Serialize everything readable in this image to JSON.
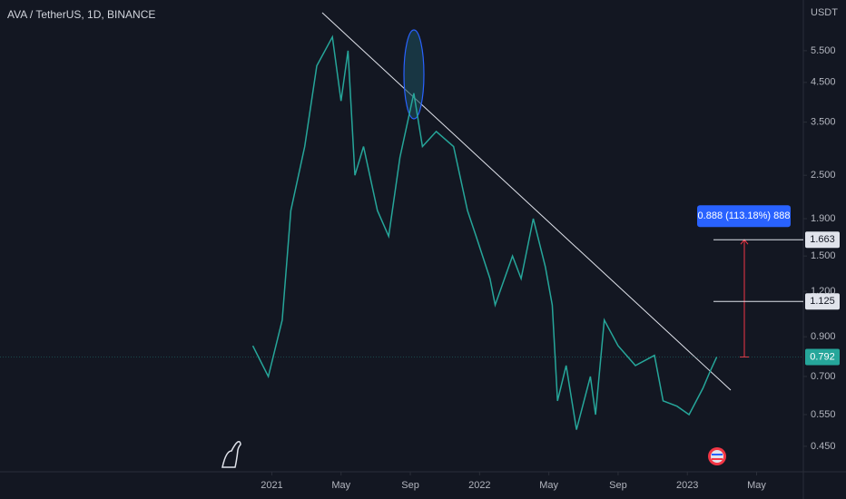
{
  "chart_data": {
    "type": "line",
    "title": "AVA / TetherUS, 1D, BINANCE",
    "y_unit": "USDT",
    "log_scale": true,
    "color": "#26a69a",
    "x": [
      -1.1,
      -0.2,
      0.6,
      1.1,
      1.9,
      2.6,
      3.5,
      4.0,
      4.4,
      4.8,
      5.3,
      6.1,
      6.75,
      7.4,
      8.2,
      8.7,
      9.5,
      10.5,
      11.3,
      11.8,
      12.6,
      12.9,
      13.9,
      14.4,
      15.1,
      15.8,
      16.2,
      16.5,
      17.0,
      17.6,
      18.4,
      18.7,
      19.2,
      20.0,
      21.0,
      22.1,
      22.6,
      23.4,
      24.1,
      24.9,
      25.3,
      25.7
    ],
    "values": [
      0.85,
      0.7,
      1.0,
      2.0,
      3.0,
      5.0,
      6.0,
      4.0,
      5.5,
      2.5,
      3.0,
      2.0,
      1.7,
      2.8,
      4.2,
      3.0,
      3.3,
      3.0,
      2.0,
      1.7,
      1.3,
      1.1,
      1.5,
      1.3,
      1.9,
      1.4,
      1.1,
      0.6,
      0.75,
      0.5,
      0.7,
      0.55,
      1.0,
      0.85,
      0.75,
      0.8,
      0.6,
      0.58,
      0.55,
      0.65,
      0.72,
      0.792
    ],
    "xlim": [
      -15.7,
      30.7
    ],
    "xticks": [
      {
        "value": 0,
        "label": "2021"
      },
      {
        "value": 4,
        "label": "May"
      },
      {
        "value": 8,
        "label": "Sep"
      },
      {
        "value": 12,
        "label": "2022"
      },
      {
        "value": 16,
        "label": "May"
      },
      {
        "value": 20,
        "label": "Sep"
      },
      {
        "value": 24,
        "label": "2023"
      },
      {
        "value": 28,
        "label": "May"
      }
    ],
    "ylim": [
      0.383,
      7.58
    ],
    "yticks": [
      {
        "value": 5.5,
        "label": "5.500"
      },
      {
        "value": 4.5,
        "label": "4.500"
      },
      {
        "value": 3.5,
        "label": "3.500"
      },
      {
        "value": 2.5,
        "label": "2.500"
      },
      {
        "value": 1.9,
        "label": "1.900"
      },
      {
        "value": 1.5,
        "label": "1.500"
      },
      {
        "value": 1.2,
        "label": "1.200"
      },
      {
        "value": 0.9,
        "label": "0.900"
      },
      {
        "value": 0.7,
        "label": "0.700"
      },
      {
        "value": 0.55,
        "label": "0.550"
      },
      {
        "value": 0.45,
        "label": "0.450"
      }
    ],
    "price_lines": [
      1.663,
      1.125
    ],
    "last_price": 0.792,
    "measure_label": "0.888 (113.18%) 888"
  }
}
